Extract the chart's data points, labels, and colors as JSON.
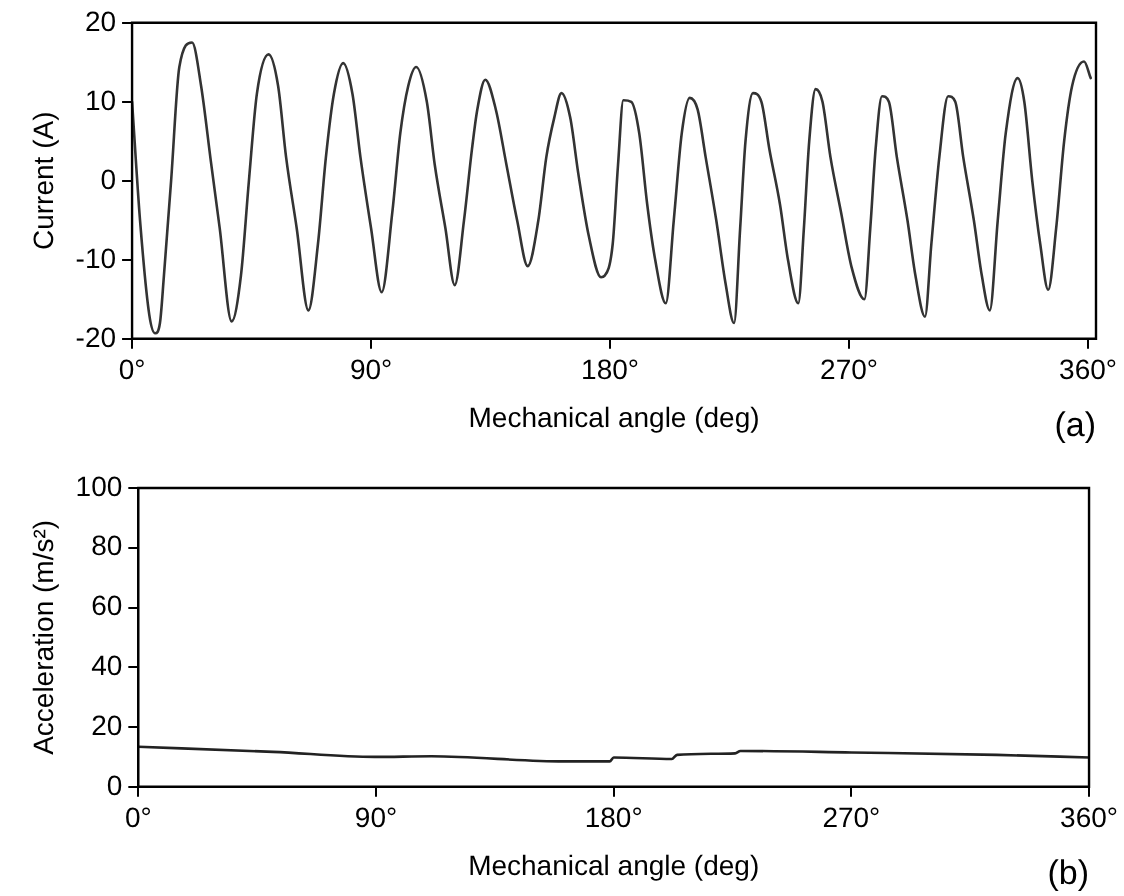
{
  "chart_data": [
    {
      "type": "line",
      "xlabel": "Mechanical angle (deg)",
      "ylabel": "Current (A)",
      "annotations": [
        "(a)"
      ],
      "xlim": [
        0,
        363
      ],
      "xticks": [
        {
          "value": 0,
          "label": "0°"
        },
        {
          "value": 90,
          "label": "90°"
        },
        {
          "value": 180,
          "label": "180°"
        },
        {
          "value": 270,
          "label": "270°"
        },
        {
          "value": 360,
          "label": "360°"
        }
      ],
      "ylim": [
        -20,
        20
      ],
      "yticks": [
        -20,
        -10,
        0,
        10,
        20
      ],
      "grid": false,
      "legend": false,
      "marker": "none",
      "line_style": "solid",
      "series": [
        {
          "color": "#333333",
          "x": [
            0,
            3,
            6.5,
            8.7,
            10.5,
            12,
            14.7,
            17.8,
            22.6,
            26,
            29.7,
            33,
            37.5,
            41,
            44,
            47,
            51.4,
            55,
            58,
            62,
            66.4,
            70,
            73,
            76,
            79.5,
            83,
            86,
            90,
            94,
            98,
            101,
            104,
            107,
            111,
            114,
            118,
            121.5,
            125,
            128,
            130,
            133,
            137,
            141,
            145,
            149,
            153,
            156,
            159,
            161.7,
            165,
            168,
            172,
            176.6,
            178,
            181,
            183,
            185,
            188,
            191,
            194,
            197,
            201,
            204,
            207,
            210,
            213,
            216,
            220,
            223.5,
            226.7,
            229,
            231,
            233.8,
            237,
            240,
            244,
            247,
            250.9,
            253,
            255,
            257.4,
            260,
            263,
            267,
            271,
            275.8,
            278,
            280,
            282.4,
            285,
            288,
            292,
            295,
            298.6,
            301,
            304,
            307.3,
            310,
            313,
            317,
            320,
            323,
            326,
            329,
            333.5,
            336,
            339,
            342,
            345,
            348,
            351,
            354,
            358.5,
            361
          ],
          "values": [
            10,
            -5,
            -17,
            -19.3,
            -18,
            -12,
            0,
            14.4,
            17.5,
            12,
            2.4,
            -6,
            -17.8,
            -12,
            0,
            11,
            16,
            12,
            3,
            -6,
            -16.4,
            -8,
            3,
            11,
            14.9,
            11,
            3,
            -6,
            -14.1,
            -4,
            6,
            12,
            14.4,
            10,
            2,
            -6,
            -13.2,
            -5,
            4,
            9,
            12.8,
            9,
            2,
            -5,
            -10.8,
            -5,
            3,
            8,
            11.1,
            8,
            1,
            -7,
            -12.2,
            -12,
            -8,
            2,
            10.2,
            10,
            6,
            -3,
            -10,
            -15.5,
            -5,
            6,
            10.5,
            9,
            3,
            -5,
            -13,
            -18,
            -6,
            5,
            11.1,
            10,
            4,
            -3,
            -10,
            -15.5,
            -6,
            5,
            11.6,
            10,
            3,
            -4,
            -11,
            -15,
            -6,
            4,
            10.7,
            10,
            3,
            -5,
            -12,
            -17.2,
            -8,
            3,
            10.7,
            10,
            3,
            -5,
            -12,
            -16.4,
            -5,
            6,
            13,
            10,
            0,
            -8,
            -13.8,
            -6,
            5,
            12,
            15.1,
            13
          ]
        }
      ]
    },
    {
      "type": "line",
      "xlabel": "Mechanical angle (deg)",
      "ylabel": "Acceleration (m/s²)",
      "annotations": [
        "(b)"
      ],
      "xlim": [
        0,
        360
      ],
      "xticks": [
        {
          "value": 0,
          "label": "0°"
        },
        {
          "value": 90,
          "label": "90°"
        },
        {
          "value": 180,
          "label": "180°"
        },
        {
          "value": 270,
          "label": "270°"
        },
        {
          "value": 360,
          "label": "360°"
        }
      ],
      "ylim": [
        0,
        100
      ],
      "yticks": [
        0,
        20,
        40,
        60,
        80,
        100
      ],
      "grid": false,
      "legend": false,
      "marker": "none",
      "line_style": "solid",
      "series": [
        {
          "color": "#222222",
          "x": [
            0,
            51,
            89.5,
            111,
            161,
            178.5,
            180,
            202,
            204,
            226,
            228,
            270,
            325,
            360
          ],
          "values": [
            13.4,
            11.7,
            10,
            10.2,
            8.5,
            8.5,
            9.8,
            9.3,
            10.7,
            11.2,
            12,
            11.5,
            10.7,
            9.8
          ]
        }
      ]
    }
  ]
}
